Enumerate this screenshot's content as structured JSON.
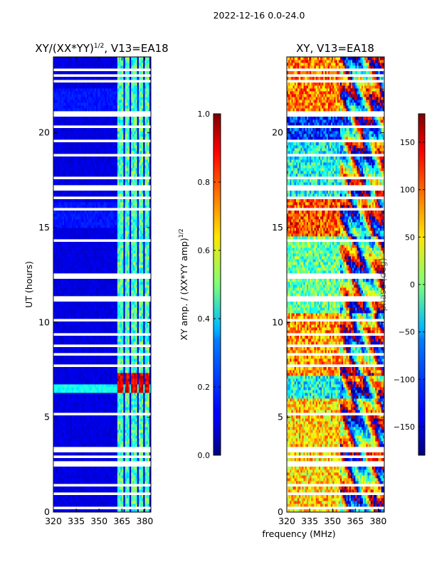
{
  "suptitle": "2022-12-16 0.0-24.0",
  "shared_xlabel": "frequency (MHz)",
  "chart_data": [
    {
      "type": "heatmap",
      "title_main": "XY/(XX*YY)",
      "title_sup": "1/2",
      "title_rest": ", V13=EA18",
      "xlabel": "frequency (MHz)",
      "ylabel": "UT (hours)",
      "xlim": [
        320,
        384
      ],
      "ylim": [
        0,
        24
      ],
      "xticks": [
        320,
        335,
        350,
        365,
        380
      ],
      "yticks": [
        0,
        5,
        10,
        15,
        20
      ],
      "colorbar": {
        "label_main": "XY amp. / (XX*YY amp)",
        "label_sup": "1/2",
        "range": [
          0.0,
          1.0
        ],
        "ticks": [
          "0.0",
          "0.2",
          "0.4",
          "0.6",
          "0.8",
          "1.0"
        ],
        "tick_values": [
          0.0,
          0.2,
          0.4,
          0.6,
          0.8,
          1.0
        ],
        "colormap": "jet"
      },
      "flagged_rows_ut": [
        0.2,
        0.6,
        1.0,
        1.4,
        1.8,
        2.5,
        2.6,
        2.9,
        3.2,
        3.4,
        4.2,
        4.8,
        5.2,
        6.0,
        7.7,
        8.3,
        8.8,
        9.4,
        10.1,
        10.2,
        11.2,
        11.3,
        12.0,
        12.4,
        12.5,
        13.2,
        14.3,
        16.0,
        16.6,
        17.0,
        17.2,
        17.6,
        18.0,
        18.3,
        18.8,
        19.2,
        19.6,
        20.3,
        20.9,
        21.1,
        21.6,
        21.9,
        22.2,
        22.7,
        23.0,
        23.3
      ],
      "bright_channels_mhz": [
        [
          362,
          366
        ],
        [
          367,
          370
        ],
        [
          371,
          375
        ],
        [
          376,
          379
        ],
        [
          380,
          383
        ]
      ],
      "feature_notes": "Low normalized amplitude (~0.05-0.15) at most frequencies; channels 362-383 MHz show 0.3-0.6; red band (~0.9-1.0) near 6.3-7.2 UT in 362-380 MHz."
    },
    {
      "type": "heatmap",
      "title": "XY, V13=EA18",
      "xlabel": "frequency (MHz)",
      "ylabel": "",
      "xlim": [
        320,
        384
      ],
      "ylim": [
        0,
        24
      ],
      "xticks": [
        320,
        335,
        350,
        365,
        380
      ],
      "yticks": [
        0,
        5,
        10,
        15,
        20
      ],
      "colorbar": {
        "label": "phase (deg)",
        "range": [
          -180,
          180
        ],
        "ticks": [
          "−150",
          "−100",
          "−50",
          "0",
          "50",
          "100",
          "150"
        ],
        "tick_values": [
          -150,
          -100,
          -50,
          0,
          50,
          100,
          150
        ],
        "colormap": "jet"
      },
      "phase_segments_deg": [
        {
          "ut_range": [
            0.0,
            6.0
          ],
          "base_phase": 60
        },
        {
          "ut_range": [
            6.0,
            7.2
          ],
          "base_phase": -40
        },
        {
          "ut_range": [
            7.2,
            10.5
          ],
          "base_phase": 80
        },
        {
          "ut_range": [
            10.5,
            14.5
          ],
          "base_phase": -10
        },
        {
          "ut_range": [
            14.5,
            16.5
          ],
          "base_phase": 110
        },
        {
          "ut_range": [
            16.5,
            19.5
          ],
          "base_phase": -40
        },
        {
          "ut_range": [
            19.5,
            21.0
          ],
          "base_phase": -120
        },
        {
          "ut_range": [
            21.0,
            24.0
          ],
          "base_phase": 90
        }
      ],
      "feature_notes": "Phase wraps with frequency above ~355 MHz producing striped patterns; lower frequencies mostly 30-120 deg with noise."
    }
  ]
}
